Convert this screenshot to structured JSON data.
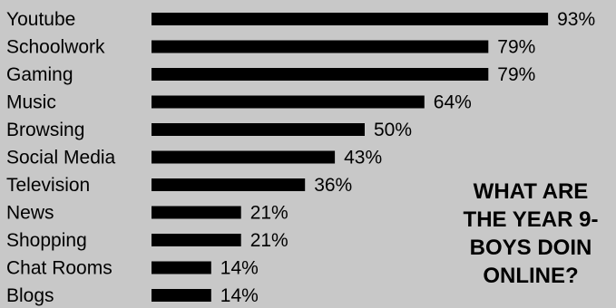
{
  "chart_data": {
    "type": "bar",
    "orientation": "horizontal",
    "title": "WHAT ARE\nTHE YEAR 9-\nBOYS DOIN\nONLINE?",
    "categories": [
      "Youtube",
      "Schoolwork",
      "Gaming",
      "Music",
      "Browsing",
      "Social Media",
      "Television",
      "News",
      "Shopping",
      "Chat Rooms",
      "Blogs"
    ],
    "values": [
      93,
      79,
      79,
      64,
      50,
      43,
      36,
      21,
      21,
      14,
      14
    ],
    "value_labels": [
      "93%",
      "79%",
      "79%",
      "64%",
      "50%",
      "43%",
      "36%",
      "21%",
      "21%",
      "14%",
      "14%"
    ],
    "xlim": [
      0,
      100
    ],
    "grid": false,
    "legend": "none",
    "bar_color": "#000000",
    "background_color": "#c8c8c8"
  }
}
